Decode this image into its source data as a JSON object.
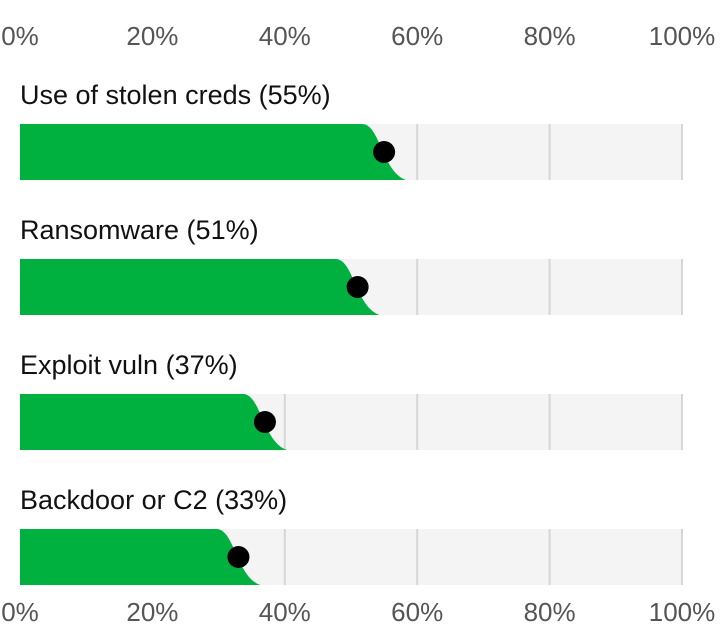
{
  "chart_data": {
    "type": "bar",
    "categories": [
      "Use of stolen creds (55%)",
      "Ransomware (51%)",
      "Exploit vuln (37%)",
      "Backdoor or C2 (33%)"
    ],
    "values": [
      55,
      51,
      37,
      33
    ],
    "color": "#00b140",
    "xlim": [
      0,
      100
    ],
    "xticks": [
      {
        "value": 0,
        "label": "0%"
      },
      {
        "value": 20,
        "label": "20%"
      },
      {
        "value": 40,
        "label": "40%"
      },
      {
        "value": 60,
        "label": "60%"
      },
      {
        "value": 80,
        "label": "80%"
      },
      {
        "value": 100,
        "label": "100%"
      }
    ],
    "grid": true
  }
}
